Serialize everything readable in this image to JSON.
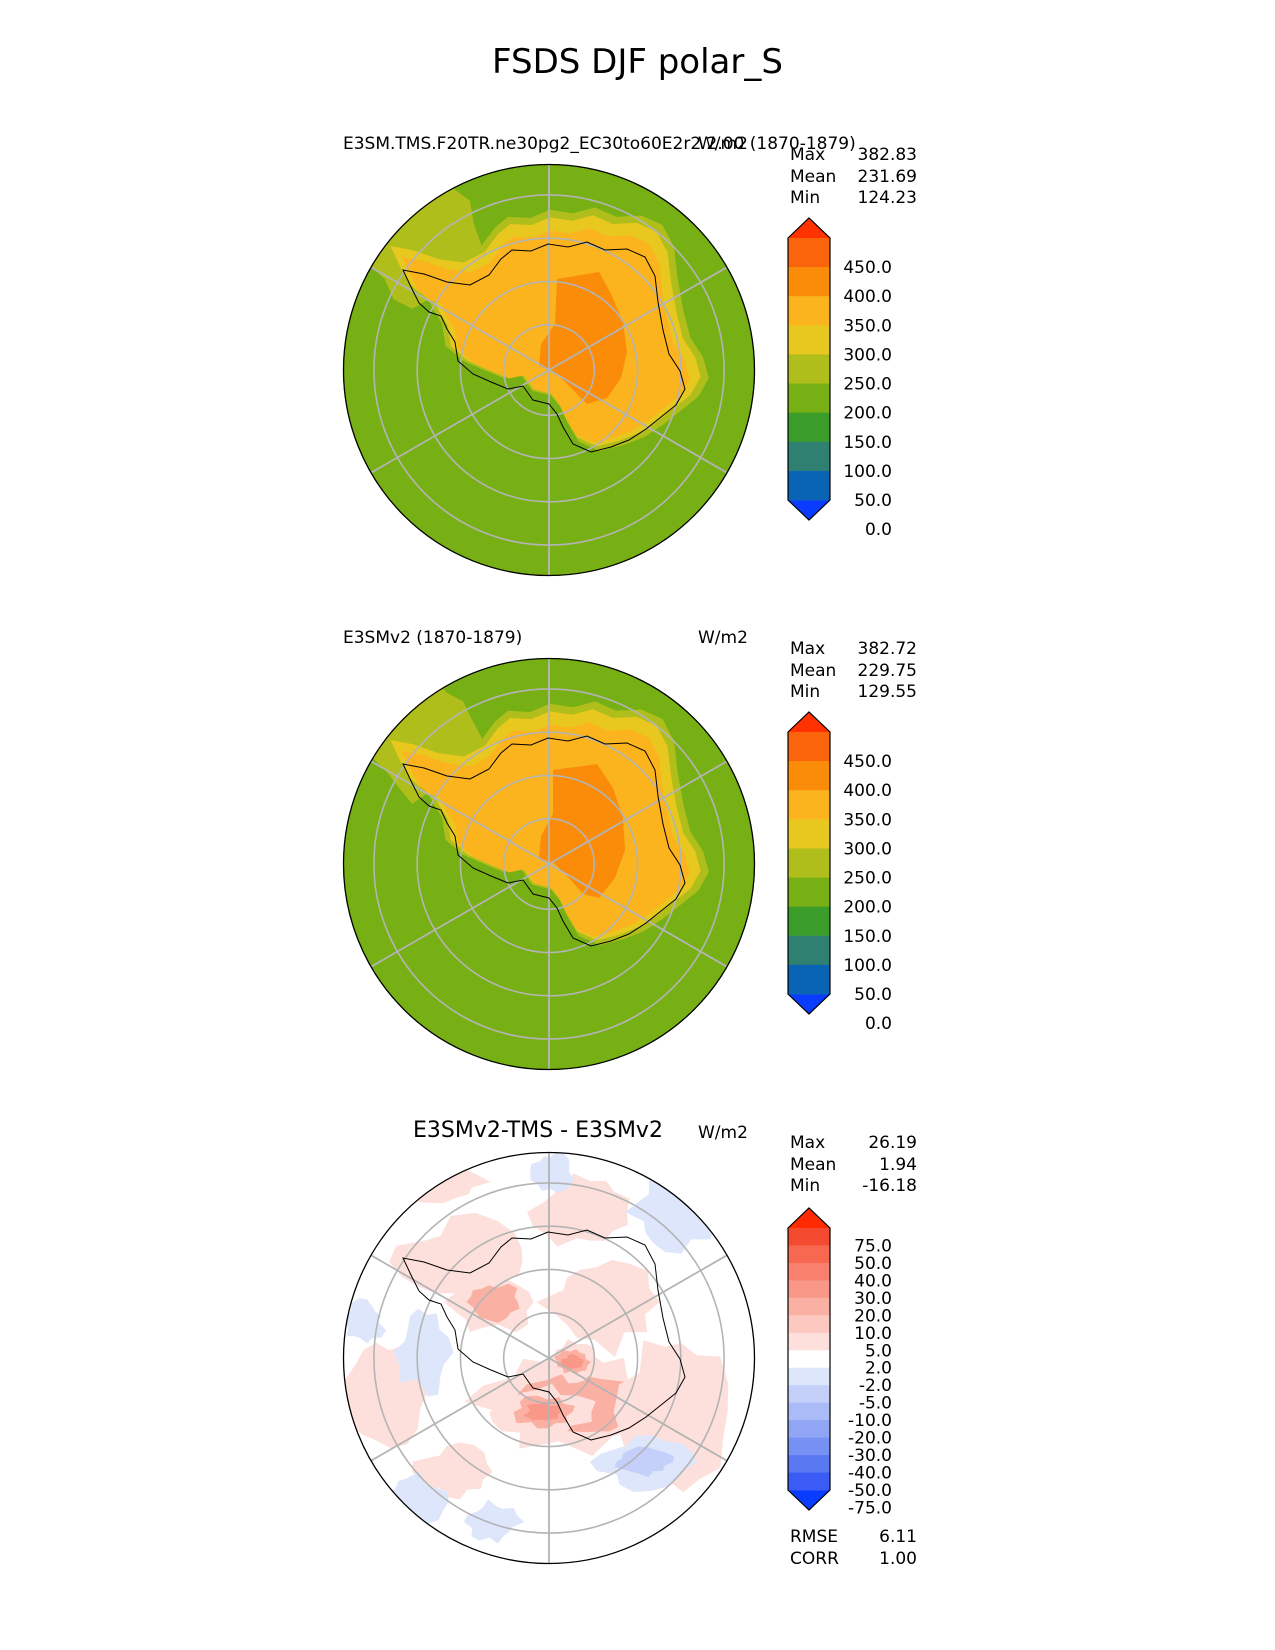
{
  "figure_title": "FSDS DJF polar_S",
  "panels": [
    {
      "title": "E3SM.TMS.F20TR.ne30pg2_EC30to60E2r2 2.00 (1870-1879)",
      "units": "W/m2",
      "stats": [
        {
          "label": "Max",
          "value": "382.83"
        },
        {
          "label": "Mean",
          "value": "231.69"
        },
        {
          "label": "Min",
          "value": "124.23"
        }
      ],
      "colorbar_ticks": [
        "450.0",
        "400.0",
        "350.0",
        "300.0",
        "250.0",
        "200.0",
        "150.0",
        "100.0",
        "50.0",
        "0.0"
      ]
    },
    {
      "title": "E3SMv2 (1870-1879)",
      "units": "W/m2",
      "stats": [
        {
          "label": "Max",
          "value": "382.72"
        },
        {
          "label": "Mean",
          "value": "229.75"
        },
        {
          "label": "Min",
          "value": "129.55"
        }
      ],
      "colorbar_ticks": [
        "450.0",
        "400.0",
        "350.0",
        "300.0",
        "250.0",
        "200.0",
        "150.0",
        "100.0",
        "50.0",
        "0.0"
      ]
    },
    {
      "title": "E3SMv2-TMS - E3SMv2",
      "units": "W/m2",
      "stats": [
        {
          "label": "Max",
          "value": "26.19"
        },
        {
          "label": "Mean",
          "value": "1.94"
        },
        {
          "label": "Min",
          "value": "-16.18"
        }
      ],
      "colorbar_ticks": [
        "75.0",
        "50.0",
        "40.0",
        "30.0",
        "20.0",
        "10.0",
        "5.0",
        "2.0",
        "-2.0",
        "-5.0",
        "-10.0",
        "-20.0",
        "-30.0",
        "-40.0",
        "-50.0",
        "-75.0"
      ],
      "metrics": [
        {
          "label": "RMSE",
          "value": "6.11"
        },
        {
          "label": "CORR",
          "value": "1.00"
        }
      ]
    }
  ],
  "chart_data": [
    {
      "type": "heatmap",
      "title": "E3SM.TMS.F20TR.ne30pg2_EC30to60E2r2 2.00 (1870-1879)",
      "projection": "south polar stereographic",
      "units": "W/m2",
      "max": 382.83,
      "mean": 231.69,
      "min": 124.23,
      "levels": [
        0,
        50,
        100,
        150,
        200,
        250,
        300,
        350,
        400,
        450
      ],
      "colors": [
        "#0a3cff",
        "#0a64b4",
        "#2f8070",
        "#3c9e2a",
        "#77b014",
        "#b0be1c",
        "#e8c81e",
        "#fbb41e",
        "#fa8c0a",
        "#fa640a",
        "#ff3200"
      ]
    },
    {
      "type": "heatmap",
      "title": "E3SMv2 (1870-1879)",
      "projection": "south polar stereographic",
      "units": "W/m2",
      "max": 382.72,
      "mean": 229.75,
      "min": 129.55,
      "levels": [
        0,
        50,
        100,
        150,
        200,
        250,
        300,
        350,
        400,
        450
      ],
      "colors": [
        "#0a3cff",
        "#0a64b4",
        "#2f8070",
        "#3c9e2a",
        "#77b014",
        "#b0be1c",
        "#e8c81e",
        "#fbb41e",
        "#fa8c0a",
        "#fa640a",
        "#ff3200"
      ]
    },
    {
      "type": "heatmap",
      "title": "E3SMv2-TMS - E3SMv2",
      "projection": "south polar stereographic",
      "units": "W/m2",
      "max": 26.19,
      "mean": 1.94,
      "min": -16.18,
      "rmse": 6.11,
      "corr": 1.0,
      "levels": [
        -75,
        -50,
        -40,
        -30,
        -20,
        -10,
        -5,
        -2,
        2,
        5,
        10,
        20,
        30,
        40,
        50,
        75
      ],
      "colors": [
        "#0a3cff",
        "#3a5cf5",
        "#5a78f2",
        "#7690f3",
        "#90a6f5",
        "#aabbf7",
        "#c4d0f9",
        "#dee6fc",
        "#ffffff",
        "#fde0dc",
        "#fcc8c0",
        "#fbb0a4",
        "#f99888",
        "#f8806c",
        "#f66850",
        "#f44a30",
        "#ff2a00"
      ]
    }
  ]
}
